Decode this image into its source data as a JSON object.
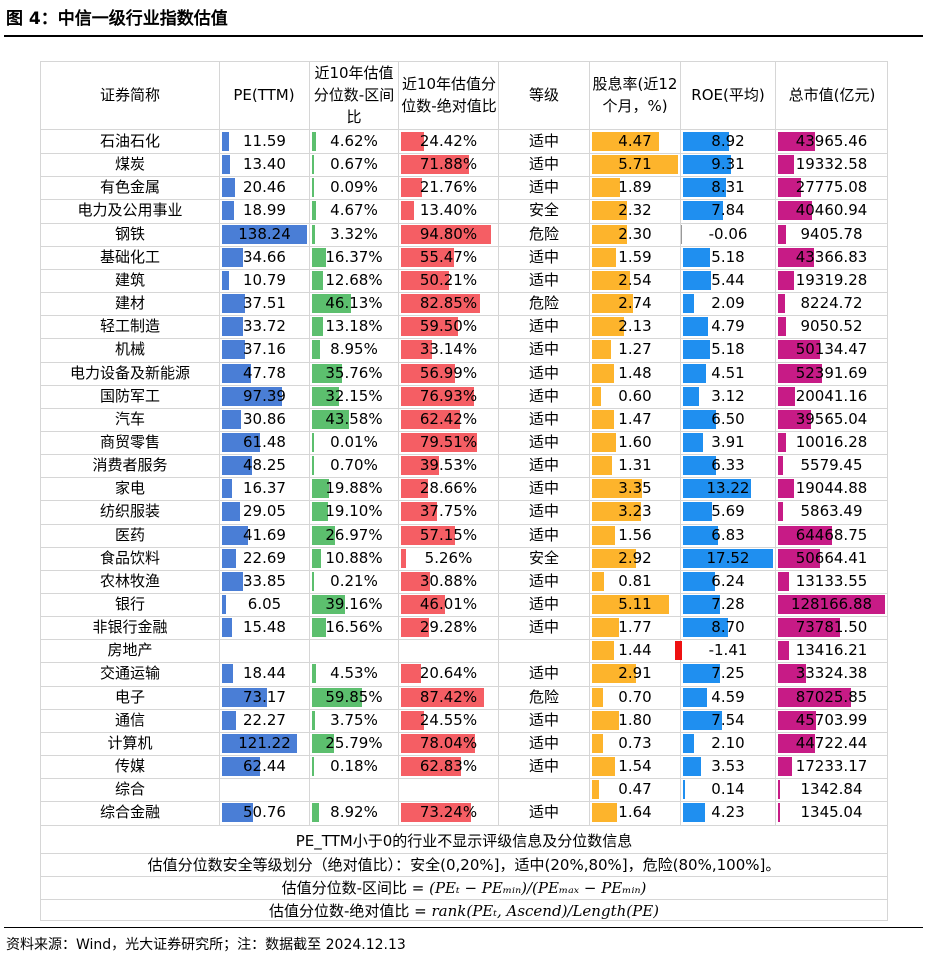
{
  "title": "图 4：中信一级行业指数估值",
  "headers": {
    "name": "证券简称",
    "pe": "PE(TTM)",
    "pct_range": "近10年估值分位数-区间比",
    "pct_abs": "近10年估值分位数-绝对值比",
    "level": "等级",
    "div": "股息率(近12个月，%)",
    "roe": "ROE(平均)",
    "mcap": "总市值(亿元)"
  },
  "colors": {
    "pe_bar": "#4a7ed6",
    "range_bar": "#5cbf6e",
    "abs_bar": "#f55e64",
    "div_bar": "#fdb42c",
    "roe_bar": "#1f8ff0",
    "roe_neg_bar": "#ee1111",
    "mcap_bar": "#c71b86"
  },
  "rows": [
    {
      "name": "石油石化",
      "pe": "11.59",
      "range": "4.62%",
      "abs": "24.42%",
      "level": "适中",
      "div": "4.47",
      "roe": "8.92",
      "mcap": "43965.46"
    },
    {
      "name": "煤炭",
      "pe": "13.40",
      "range": "0.67%",
      "abs": "71.88%",
      "level": "适中",
      "div": "5.71",
      "roe": "9.31",
      "mcap": "19332.58"
    },
    {
      "name": "有色金属",
      "pe": "20.46",
      "range": "0.09%",
      "abs": "21.76%",
      "level": "适中",
      "div": "1.89",
      "roe": "8.31",
      "mcap": "27775.08"
    },
    {
      "name": "电力及公用事业",
      "pe": "18.99",
      "range": "4.67%",
      "abs": "13.40%",
      "level": "安全",
      "div": "2.32",
      "roe": "7.84",
      "mcap": "40460.94"
    },
    {
      "name": "钢铁",
      "pe": "138.24",
      "range": "3.32%",
      "abs": "94.80%",
      "level": "危险",
      "div": "2.30",
      "roe": "-0.06",
      "mcap": "9405.78"
    },
    {
      "name": "基础化工",
      "pe": "34.66",
      "range": "16.37%",
      "abs": "55.47%",
      "level": "适中",
      "div": "1.59",
      "roe": "5.18",
      "mcap": "43366.83"
    },
    {
      "name": "建筑",
      "pe": "10.79",
      "range": "12.68%",
      "abs": "50.21%",
      "level": "适中",
      "div": "2.54",
      "roe": "5.44",
      "mcap": "19319.28"
    },
    {
      "name": "建材",
      "pe": "37.51",
      "range": "46.13%",
      "abs": "82.85%",
      "level": "危险",
      "div": "2.74",
      "roe": "2.09",
      "mcap": "8224.72"
    },
    {
      "name": "轻工制造",
      "pe": "33.72",
      "range": "13.18%",
      "abs": "59.50%",
      "level": "适中",
      "div": "2.13",
      "roe": "4.79",
      "mcap": "9050.52"
    },
    {
      "name": "机械",
      "pe": "37.16",
      "range": "8.95%",
      "abs": "33.14%",
      "level": "适中",
      "div": "1.27",
      "roe": "5.18",
      "mcap": "50134.47"
    },
    {
      "name": "电力设备及新能源",
      "pe": "47.78",
      "range": "35.76%",
      "abs": "56.99%",
      "level": "适中",
      "div": "1.48",
      "roe": "4.51",
      "mcap": "52391.69"
    },
    {
      "name": "国防军工",
      "pe": "97.39",
      "range": "32.15%",
      "abs": "76.93%",
      "level": "适中",
      "div": "0.60",
      "roe": "3.12",
      "mcap": "20041.16"
    },
    {
      "name": "汽车",
      "pe": "30.86",
      "range": "43.58%",
      "abs": "62.42%",
      "level": "适中",
      "div": "1.47",
      "roe": "6.50",
      "mcap": "39565.04"
    },
    {
      "name": "商贸零售",
      "pe": "61.48",
      "range": "0.01%",
      "abs": "79.51%",
      "level": "适中",
      "div": "1.60",
      "roe": "3.91",
      "mcap": "10016.28"
    },
    {
      "name": "消费者服务",
      "pe": "48.25",
      "range": "0.70%",
      "abs": "39.53%",
      "level": "适中",
      "div": "1.31",
      "roe": "6.33",
      "mcap": "5579.45"
    },
    {
      "name": "家电",
      "pe": "16.37",
      "range": "19.88%",
      "abs": "28.66%",
      "level": "适中",
      "div": "3.35",
      "roe": "13.22",
      "mcap": "19044.88"
    },
    {
      "name": "纺织服装",
      "pe": "29.05",
      "range": "19.10%",
      "abs": "37.75%",
      "level": "适中",
      "div": "3.23",
      "roe": "5.69",
      "mcap": "5863.49"
    },
    {
      "name": "医药",
      "pe": "41.69",
      "range": "26.97%",
      "abs": "57.15%",
      "level": "适中",
      "div": "1.56",
      "roe": "6.83",
      "mcap": "64468.75"
    },
    {
      "name": "食品饮料",
      "pe": "22.69",
      "range": "10.88%",
      "abs": "5.26%",
      "level": "安全",
      "div": "2.92",
      "roe": "17.52",
      "mcap": "50664.41"
    },
    {
      "name": "农林牧渔",
      "pe": "33.85",
      "range": "0.21%",
      "abs": "30.88%",
      "level": "适中",
      "div": "0.81",
      "roe": "6.24",
      "mcap": "13133.55"
    },
    {
      "name": "银行",
      "pe": "6.05",
      "range": "39.16%",
      "abs": "46.01%",
      "level": "适中",
      "div": "5.11",
      "roe": "7.28",
      "mcap": "128166.88"
    },
    {
      "name": "非银行金融",
      "pe": "15.48",
      "range": "16.56%",
      "abs": "29.28%",
      "level": "适中",
      "div": "1.77",
      "roe": "8.70",
      "mcap": "73781.50"
    },
    {
      "name": "房地产",
      "pe": "",
      "range": "",
      "abs": "",
      "level": "",
      "div": "1.44",
      "roe": "-1.41",
      "mcap": "13416.21"
    },
    {
      "name": "交通运输",
      "pe": "18.44",
      "range": "4.53%",
      "abs": "20.64%",
      "level": "适中",
      "div": "2.91",
      "roe": "7.25",
      "mcap": "33324.38"
    },
    {
      "name": "电子",
      "pe": "73.17",
      "range": "59.85%",
      "abs": "87.42%",
      "level": "危险",
      "div": "0.70",
      "roe": "4.59",
      "mcap": "87025.85"
    },
    {
      "name": "通信",
      "pe": "22.27",
      "range": "3.75%",
      "abs": "24.55%",
      "level": "适中",
      "div": "1.80",
      "roe": "7.54",
      "mcap": "45703.99"
    },
    {
      "name": "计算机",
      "pe": "121.22",
      "range": "25.79%",
      "abs": "78.04%",
      "level": "适中",
      "div": "0.73",
      "roe": "2.10",
      "mcap": "44722.44"
    },
    {
      "name": "传媒",
      "pe": "62.44",
      "range": "0.18%",
      "abs": "62.83%",
      "level": "适中",
      "div": "1.54",
      "roe": "3.53",
      "mcap": "17233.17"
    },
    {
      "name": "综合",
      "pe": "",
      "range": "",
      "abs": "",
      "level": "",
      "div": "0.47",
      "roe": "0.14",
      "mcap": "1342.84"
    },
    {
      "name": "综合金融",
      "pe": "50.76",
      "range": "8.92%",
      "abs": "73.24%",
      "level": "适中",
      "div": "1.64",
      "roe": "4.23",
      "mcap": "1345.04"
    }
  ],
  "notes": {
    "note1": "PE_TTM小于0的行业不显示评级信息及分位数信息",
    "note2": "估值分位数安全等级划分（绝对值比）：安全(0,20%]，适中(20%,80%]，危险(80%,100%]。",
    "formula1_label": "估值分位数-区间比 =",
    "formula1_expr": "(PEₜ − PEₘᵢₙ)/(PEₘₐₓ − PEₘᵢₙ)",
    "formula2_label": "估值分位数-绝对值比 =",
    "formula2_expr": "rank(PEₜ, Ascend)/Length(PE)"
  },
  "source": "资料来源：Wind，光大证券研究所；注：数据截至 2024.12.13"
}
